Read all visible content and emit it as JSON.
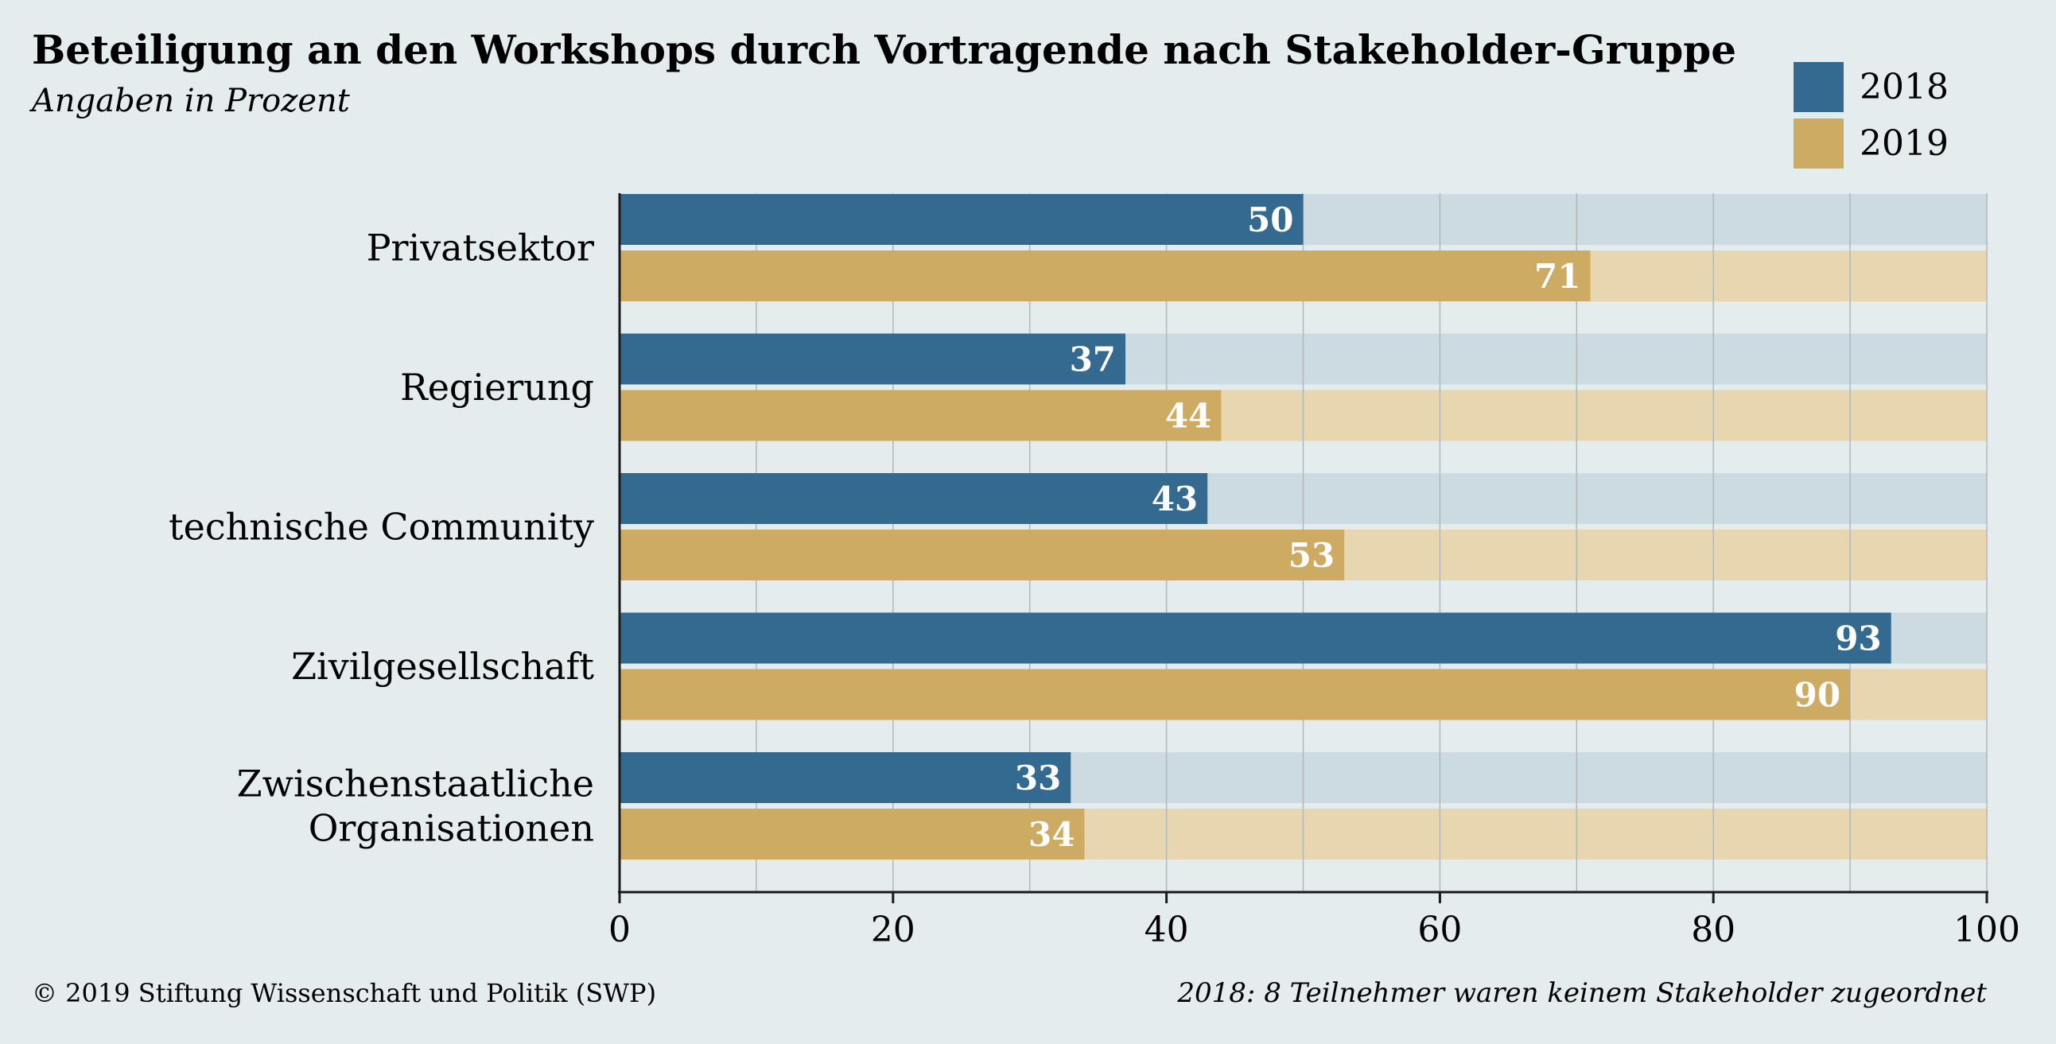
{
  "colors": {
    "background": "#e4ecee",
    "series_2018": "#346a8f",
    "series_2018_track": "#ccdae2",
    "series_2019": "#cdab63",
    "series_2019_track": "#e8d6b0",
    "grid": "#b0b8bc",
    "axis": "#1a1a1a"
  },
  "chart_data": {
    "type": "bar",
    "orientation": "horizontal",
    "title": "Beteiligung an den Workshops durch Vortragende nach Stakeholder-Gruppe",
    "subtitle": "Angaben in Prozent",
    "categories": [
      [
        "Privatsektor"
      ],
      [
        "Regierung"
      ],
      [
        "technische Community"
      ],
      [
        "Zivilgesellschaft"
      ],
      [
        "Zwischenstaatliche",
        "Organisationen"
      ]
    ],
    "series": [
      {
        "name": "2018",
        "values": [
          50,
          37,
          43,
          93,
          33
        ]
      },
      {
        "name": "2019",
        "values": [
          71,
          44,
          53,
          90,
          34
        ]
      }
    ],
    "xlim": [
      0,
      100
    ],
    "xticks": [
      0,
      20,
      40,
      60,
      80,
      100
    ],
    "xlabel": "",
    "ylabel": "",
    "grid": true,
    "legend_position": "top-right"
  },
  "footer": {
    "copyright": "© 2019 Stiftung Wissenschaft und Politik (SWP)",
    "note": "2018: 8 Teilnehmer waren keinem Stakeholder zugeordnet"
  }
}
